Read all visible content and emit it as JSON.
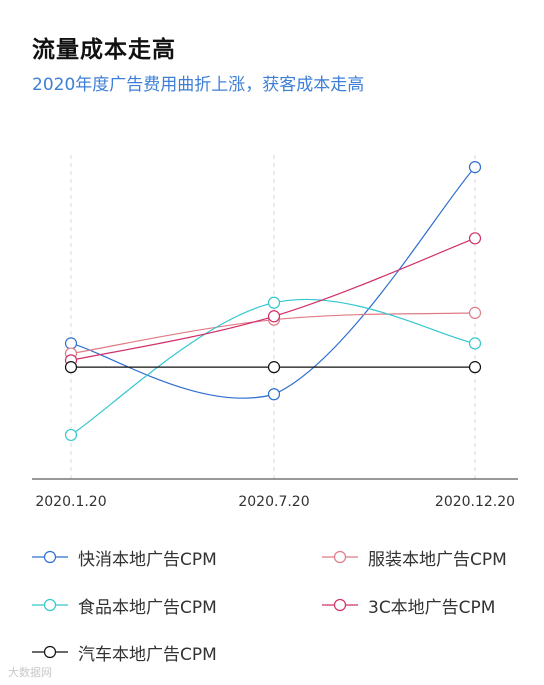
{
  "title": "流量成本走高",
  "subtitle": "2020年度广告费用曲折上涨，获客成本走高",
  "colors": {
    "title": "#111111",
    "subtitle": "#3d7fd6",
    "axis": "#333333",
    "grid": "#d9d9d9"
  },
  "watermark": "大数据网",
  "chart_data": {
    "type": "line",
    "x": [
      "2020.1.20",
      "2020.7.20",
      "2020.12.20"
    ],
    "ylim": [
      0,
      100
    ],
    "grid": "vertical dashed",
    "y_axis_labels": false,
    "legend_position": "bottom",
    "series": [
      {
        "name": "快消本地广告CPM",
        "color": "#2f6fcf",
        "values": [
          40,
          25,
          92
        ]
      },
      {
        "name": "服装本地广告CPM",
        "color": "#e07b86",
        "values": [
          37,
          47,
          49
        ]
      },
      {
        "name": "食品本地广告CPM",
        "color": "#34c7cf",
        "values": [
          13,
          52,
          40
        ]
      },
      {
        "name": "3C本地广告CPM",
        "color": "#d0306a",
        "values": [
          35,
          48,
          71
        ]
      },
      {
        "name": "汽车本地广告CPM",
        "color": "#111111",
        "values": [
          33,
          33,
          33
        ]
      }
    ]
  }
}
